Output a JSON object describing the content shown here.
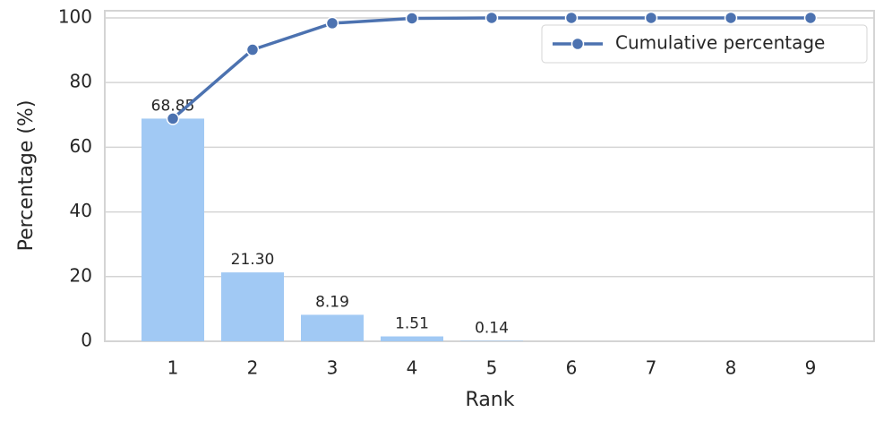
{
  "chart_data": {
    "type": "bar",
    "categories": [
      "1",
      "2",
      "3",
      "4",
      "5",
      "6",
      "7",
      "8",
      "9"
    ],
    "series": [
      {
        "type": "bar",
        "color": "#a1c9f4",
        "values": [
          68.85,
          21.3,
          8.19,
          1.51,
          0.14,
          0,
          0,
          0,
          0
        ],
        "value_labels": [
          "68.85",
          "21.30",
          "8.19",
          "1.51",
          "0.14",
          null,
          null,
          null,
          null
        ]
      },
      {
        "type": "line",
        "name": "Cumulative percentage",
        "color": "#4c72b0",
        "values": [
          68.85,
          90.15,
          98.34,
          99.85,
          99.99,
          100,
          100,
          100,
          100
        ]
      }
    ],
    "x_label": "Rank",
    "y_label": "Percentage (%)",
    "ylim": [
      0,
      102.2
    ],
    "yticks": [
      0,
      20,
      40,
      60,
      80,
      100
    ],
    "grid": true,
    "legend": "upper right"
  }
}
